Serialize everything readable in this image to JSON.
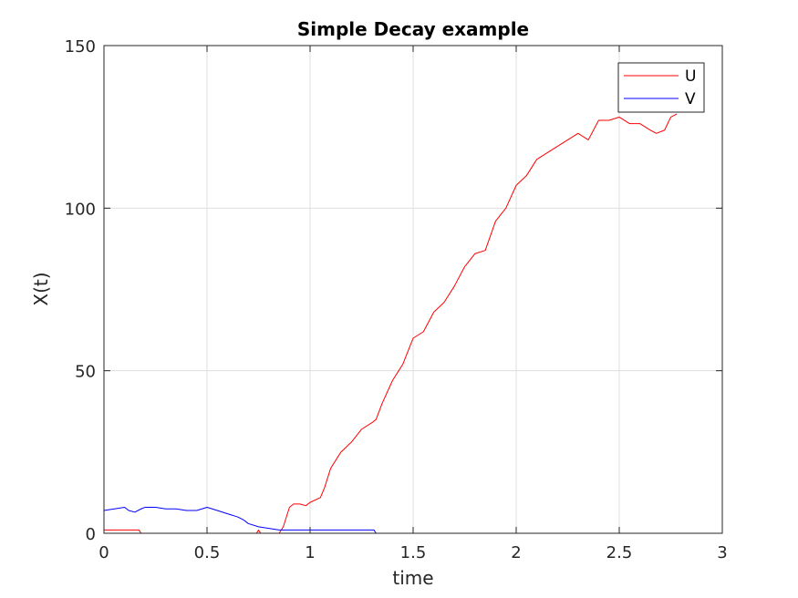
{
  "chart_data": {
    "type": "line",
    "title": "Simple Decay example",
    "xlabel": "time",
    "ylabel": "X(t)",
    "xlim": [
      0,
      3
    ],
    "ylim": [
      0,
      150
    ],
    "x_ticks": [
      0,
      0.5,
      1,
      1.5,
      2,
      2.5,
      3
    ],
    "x_tick_labels": [
      "0",
      "0.5",
      "1",
      "1.5",
      "2",
      "2.5",
      "3"
    ],
    "y_ticks": [
      0,
      50,
      100,
      150
    ],
    "y_tick_labels": [
      "0",
      "50",
      "100",
      "150"
    ],
    "grid": true,
    "legend_position": "top-right",
    "series": [
      {
        "name": "U",
        "color": "#ff0000",
        "x": [
          0,
          0.17,
          0.18,
          0.74,
          0.75,
          0.76,
          0.8,
          0.85,
          0.87,
          0.9,
          0.92,
          0.95,
          0.98,
          1.0,
          1.05,
          1.07,
          1.1,
          1.15,
          1.2,
          1.25,
          1.3,
          1.32,
          1.35,
          1.4,
          1.43,
          1.45,
          1.5,
          1.55,
          1.6,
          1.65,
          1.7,
          1.75,
          1.8,
          1.85,
          1.9,
          1.95,
          2.0,
          2.05,
          2.1,
          2.15,
          2.2,
          2.25,
          2.3,
          2.35,
          2.4,
          2.45,
          2.5,
          2.55,
          2.6,
          2.65,
          2.68,
          2.72,
          2.75,
          2.78
        ],
        "y": [
          1,
          1,
          0,
          0,
          1,
          0,
          0,
          0,
          2,
          8,
          9,
          9,
          8.5,
          9.5,
          11,
          14,
          20,
          25,
          28,
          32,
          34,
          35,
          40,
          47,
          50,
          52,
          60,
          62,
          68,
          71,
          76,
          82,
          86,
          87,
          96,
          100,
          107,
          110,
          115,
          117,
          119,
          121,
          123,
          121,
          127,
          127,
          128,
          126,
          126,
          124,
          123,
          124,
          128,
          129
        ]
      },
      {
        "name": "V",
        "color": "#0000ff",
        "x": [
          0,
          0.05,
          0.1,
          0.12,
          0.15,
          0.18,
          0.2,
          0.25,
          0.3,
          0.35,
          0.4,
          0.45,
          0.5,
          0.55,
          0.6,
          0.65,
          0.68,
          0.7,
          0.75,
          0.8,
          0.85,
          0.9,
          1.0,
          1.3,
          1.31,
          1.32,
          1.5,
          2.0,
          2.5,
          2.88
        ],
        "y": [
          7,
          7.5,
          8,
          7,
          6.5,
          7.5,
          8,
          8,
          7.5,
          7.5,
          7,
          7,
          8,
          7,
          6,
          5,
          4,
          3,
          2,
          1.5,
          1,
          1,
          1,
          1,
          1,
          0,
          0,
          0,
          0,
          0
        ]
      }
    ]
  }
}
